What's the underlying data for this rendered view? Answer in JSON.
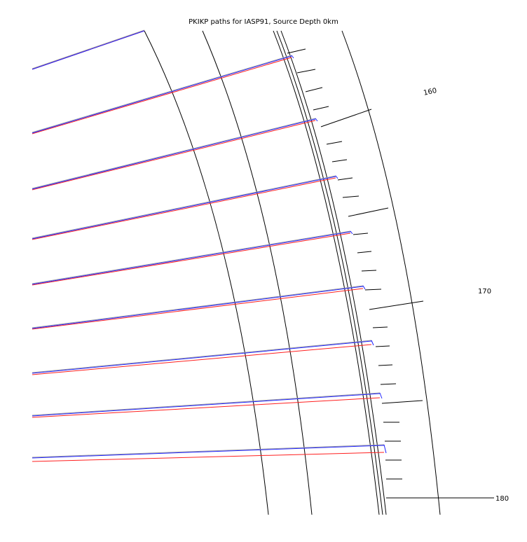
{
  "title": "PKIKP paths for IASP91, Source Depth 0km",
  "model": "IASP91",
  "phase": "PKIKP",
  "source_depth_km": 0,
  "distance_labels": [
    "160",
    "170",
    "180"
  ],
  "colors": {
    "background": "#ffffff",
    "model_lines": "#000000",
    "path_gray": "#a0a0a0",
    "path_blue": "#1f22ff",
    "path_red": "#ff1f1f"
  },
  "ray_count": 10
}
